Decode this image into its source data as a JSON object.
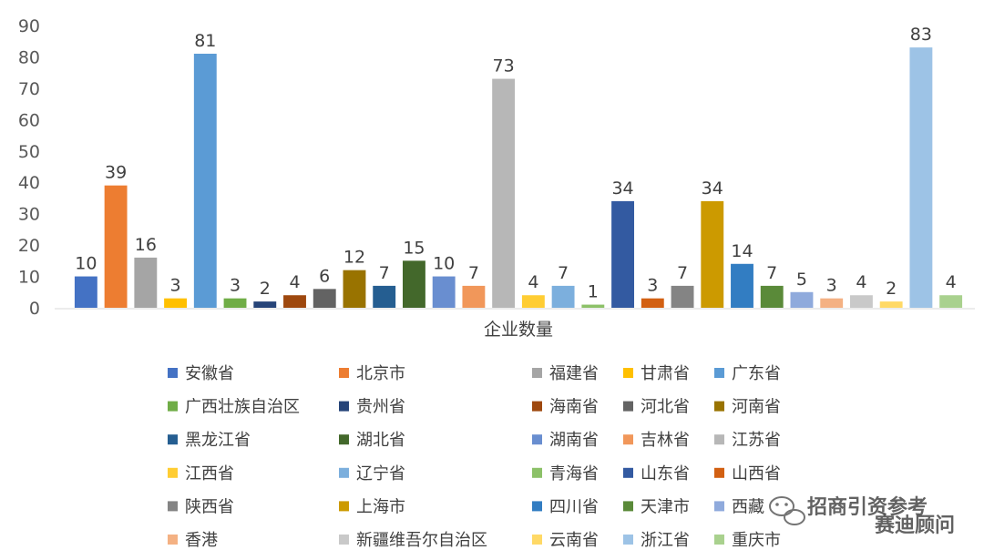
{
  "chart_data": {
    "type": "bar",
    "xlabel": "企业数量",
    "ylim": [
      0,
      90
    ],
    "yticks": [
      0,
      10,
      20,
      30,
      40,
      50,
      60,
      70,
      80,
      90
    ],
    "grid": false,
    "legend_position": "bottom",
    "series": [
      {
        "name": "安徽省",
        "value": 10,
        "color": "#4472C4"
      },
      {
        "name": "北京市",
        "value": 39,
        "color": "#ED7D31"
      },
      {
        "name": "福建省",
        "value": 16,
        "color": "#A5A5A5"
      },
      {
        "name": "甘肃省",
        "value": 3,
        "color": "#FFC000"
      },
      {
        "name": "广东省",
        "value": 81,
        "color": "#5B9BD5"
      },
      {
        "name": "广西壮族自治区",
        "value": 3,
        "color": "#70AD47"
      },
      {
        "name": "贵州省",
        "value": 2,
        "color": "#264478"
      },
      {
        "name": "海南省",
        "value": 4,
        "color": "#9E480E"
      },
      {
        "name": "河北省",
        "value": 6,
        "color": "#636363"
      },
      {
        "name": "河南省",
        "value": 12,
        "color": "#997300"
      },
      {
        "name": "黑龙江省",
        "value": 7,
        "color": "#255E91"
      },
      {
        "name": "湖北省",
        "value": 15,
        "color": "#43682B"
      },
      {
        "name": "湖南省",
        "value": 10,
        "color": "#698ED0"
      },
      {
        "name": "吉林省",
        "value": 7,
        "color": "#F1975A"
      },
      {
        "name": "江苏省",
        "value": 73,
        "color": "#B7B7B7"
      },
      {
        "name": "江西省",
        "value": 4,
        "color": "#FFCD33"
      },
      {
        "name": "辽宁省",
        "value": 7,
        "color": "#7CAFDD"
      },
      {
        "name": "青海省",
        "value": 1,
        "color": "#8CC168"
      },
      {
        "name": "山东省",
        "value": 34,
        "color": "#335AA1"
      },
      {
        "name": "山西省",
        "value": 3,
        "color": "#D26012"
      },
      {
        "name": "陕西省",
        "value": 7,
        "color": "#848484"
      },
      {
        "name": "上海市",
        "value": 34,
        "color": "#CC9A00"
      },
      {
        "name": "四川省",
        "value": 14,
        "color": "#327DC2"
      },
      {
        "name": "天津市",
        "value": 7,
        "color": "#5A8A39"
      },
      {
        "name": "西藏",
        "value": 5,
        "color": "#8FAADC"
      },
      {
        "name": "香港",
        "value": 3,
        "color": "#F4B183"
      },
      {
        "name": "新疆维吾尔自治区",
        "value": 4,
        "color": "#C9C9C9"
      },
      {
        "name": "云南省",
        "value": 2,
        "color": "#FFD966"
      },
      {
        "name": "浙江省",
        "value": 83,
        "color": "#9DC3E6"
      },
      {
        "name": "重庆市",
        "value": 4,
        "color": "#A9D18E"
      }
    ]
  },
  "watermark": {
    "line1": "招商引资参考",
    "line2": "赛迪顾问",
    "icon": "wechat-icon"
  }
}
